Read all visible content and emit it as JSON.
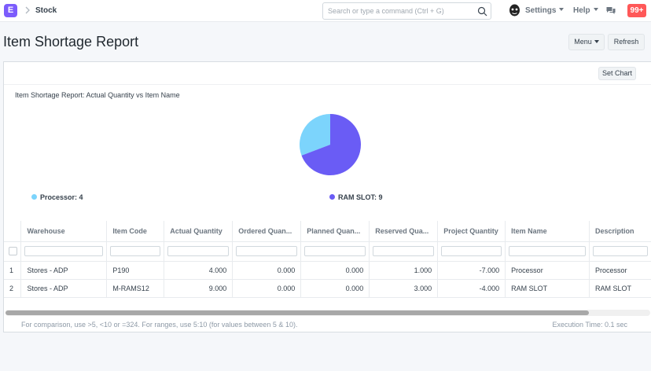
{
  "navbar": {
    "logo_letter": "E",
    "breadcrumb": "Stock",
    "search_placeholder": "Search or type a command (Ctrl + G)",
    "settings_label": "Settings",
    "help_label": "Help",
    "notification_count": "99+"
  },
  "page": {
    "title": "Item Shortage Report",
    "menu_label": "Menu",
    "refresh_label": "Refresh",
    "set_chart_label": "Set Chart"
  },
  "chart_data": {
    "type": "pie",
    "title": "Item Shortage Report: Actual Quantity vs Item Name",
    "categories": [
      "Processor",
      "RAM SLOT"
    ],
    "values": [
      4,
      9
    ],
    "colors": [
      "#7cd4fc",
      "#6a5cf5"
    ],
    "legend": [
      {
        "label": "Processor: 4"
      },
      {
        "label": "RAM SLOT: 9"
      }
    ],
    "legend_placement": "bottom"
  },
  "table": {
    "columns": [
      "Warehouse",
      "Item Code",
      "Actual Quantity",
      "Ordered Quan...",
      "Planned Quan...",
      "Reserved Qua...",
      "Project Quantity",
      "Item Name",
      "Description"
    ],
    "rows": [
      [
        "1",
        "Stores - ADP",
        "P190",
        "4.000",
        "0.000",
        "0.000",
        "1.000",
        "-7.000",
        "Processor",
        "Processor"
      ],
      [
        "2",
        "Stores - ADP",
        "M-RAMS12",
        "9.000",
        "0.000",
        "0.000",
        "3.000",
        "-4.000",
        "RAM SLOT",
        "RAM SLOT"
      ]
    ]
  },
  "footer": {
    "note": "For comparison, use >5, <10 or =324. For ranges, use 5:10 (for values between 5 & 10).",
    "execution_time": "Execution Time: 0.1 sec"
  }
}
